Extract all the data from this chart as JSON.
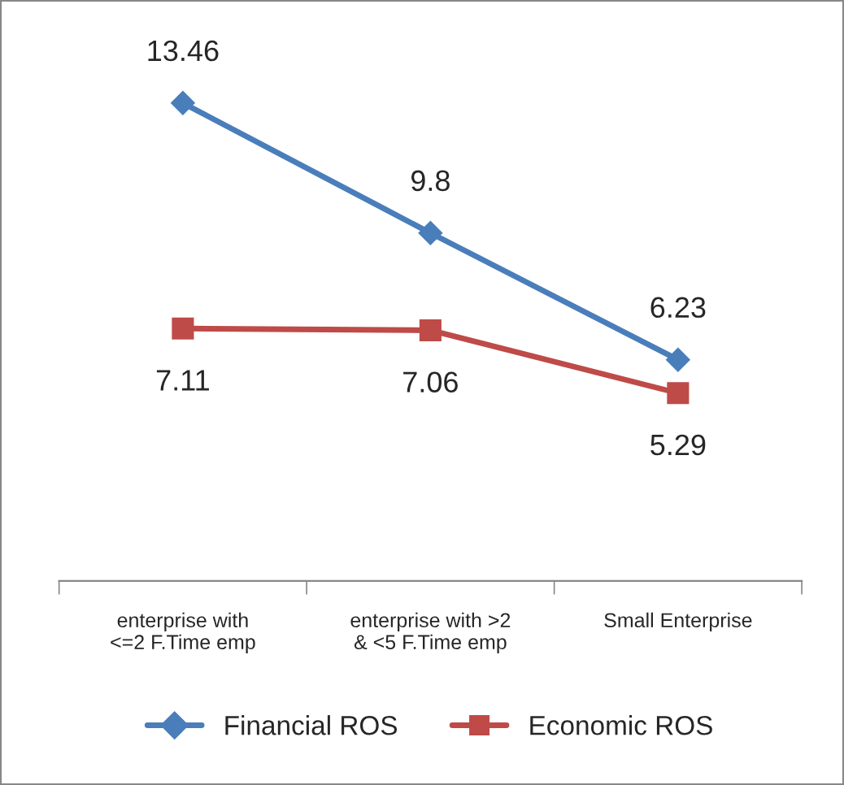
{
  "chart_data": {
    "type": "line",
    "categories": [
      "enterprise with\n<=2 F.Time emp",
      "enterprise with >2\n& <5 F.Time emp",
      "Small Enterprise"
    ],
    "series": [
      {
        "name": "Financial ROS",
        "color": "#4a7ebb",
        "marker": "diamond",
        "values": [
          13.46,
          9.8,
          6.23
        ]
      },
      {
        "name": "Economic ROS",
        "color": "#be4b48",
        "marker": "square",
        "values": [
          7.11,
          7.06,
          5.29
        ]
      }
    ],
    "data_labels": true,
    "legend": "bottom",
    "grid": false,
    "line_style": "solid"
  }
}
